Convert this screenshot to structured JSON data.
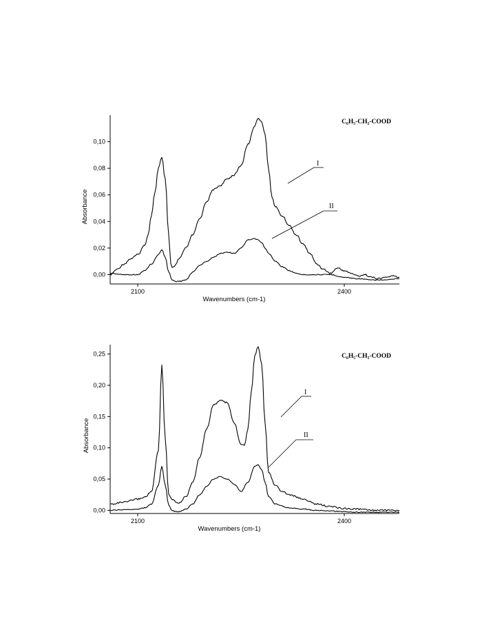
{
  "chart_data": [
    {
      "type": "line",
      "compound_label": "C₆H₅-CH₂-COOD",
      "xlabel": "Wavenumbers (cm-1)",
      "ylabel": "Absorbance",
      "xlim": [
        2060,
        2480
      ],
      "ylim": [
        -0.007,
        0.12
      ],
      "x_ticks": [
        2100,
        2400
      ],
      "y_ticks": [
        "0,00",
        "0,02",
        "0,04",
        "0,06",
        "0,08",
        "0,10"
      ],
      "y_tick_values": [
        0,
        0.02,
        0.04,
        0.06,
        0.08,
        0.1
      ],
      "grid": false,
      "series": [
        {
          "name": "I",
          "x": [
            2060,
            2070,
            2080,
            2090,
            2100,
            2110,
            2115,
            2120,
            2125,
            2130,
            2135,
            2140,
            2145,
            2148,
            2150,
            2155,
            2160,
            2170,
            2180,
            2190,
            2200,
            2210,
            2220,
            2230,
            2240,
            2250,
            2260,
            2270,
            2275,
            2280,
            2285,
            2290,
            2295,
            2300,
            2310,
            2320,
            2330,
            2340,
            2350,
            2360,
            2370,
            2380,
            2390,
            2400,
            2410,
            2420,
            2430,
            2440,
            2450,
            2460,
            2470,
            2480
          ],
          "y": [
            0.0,
            0.004,
            0.008,
            0.012,
            0.015,
            0.022,
            0.03,
            0.045,
            0.062,
            0.08,
            0.088,
            0.072,
            0.03,
            0.008,
            0.005,
            0.007,
            0.012,
            0.02,
            0.03,
            0.042,
            0.055,
            0.064,
            0.067,
            0.072,
            0.075,
            0.082,
            0.098,
            0.112,
            0.118,
            0.115,
            0.105,
            0.08,
            0.058,
            0.051,
            0.044,
            0.037,
            0.03,
            0.023,
            0.016,
            0.008,
            0.004,
            0.001,
            0.005,
            0.003,
            0.001,
            -0.001,
            0.0,
            -0.002,
            -0.003,
            -0.002,
            -0.001,
            -0.002
          ]
        },
        {
          "name": "II",
          "x": [
            2060,
            2080,
            2100,
            2110,
            2120,
            2130,
            2135,
            2140,
            2145,
            2150,
            2155,
            2160,
            2170,
            2180,
            2190,
            2200,
            2210,
            2220,
            2230,
            2240,
            2250,
            2260,
            2270,
            2275,
            2280,
            2285,
            2290,
            2300,
            2310,
            2320,
            2330,
            2340,
            2350,
            2360,
            2380,
            2400,
            2420,
            2440,
            2460,
            2480
          ],
          "y": [
            0.001,
            0.0,
            0.0,
            0.003,
            0.008,
            0.015,
            0.019,
            0.013,
            0.002,
            -0.004,
            -0.005,
            -0.005,
            -0.004,
            0.002,
            0.007,
            0.01,
            0.013,
            0.016,
            0.017,
            0.016,
            0.02,
            0.026,
            0.027,
            0.026,
            0.024,
            0.02,
            0.016,
            0.01,
            0.006,
            0.003,
            0.001,
            0.0,
            0.0,
            0.0,
            0.0,
            -0.002,
            -0.003,
            -0.004,
            -0.004,
            -0.003
          ]
        }
      ]
    },
    {
      "type": "line",
      "compound_label": "C₆H₅-CH₂-COOD",
      "xlabel": "Wavenumbers (cm-1)",
      "ylabel": "Absorbance",
      "xlim": [
        2060,
        2480
      ],
      "ylim": [
        -0.005,
        0.265
      ],
      "x_ticks": [
        2100,
        2400
      ],
      "y_ticks": [
        "0,00",
        "0,05",
        "0,10",
        "0,15",
        "0,20",
        "0,25"
      ],
      "y_tick_values": [
        0,
        0.05,
        0.1,
        0.15,
        0.2,
        0.25
      ],
      "grid": false,
      "series": [
        {
          "name": "I",
          "x": [
            2060,
            2080,
            2100,
            2110,
            2120,
            2130,
            2135,
            2140,
            2145,
            2150,
            2155,
            2160,
            2170,
            2180,
            2190,
            2200,
            2210,
            2220,
            2230,
            2240,
            2250,
            2255,
            2260,
            2265,
            2270,
            2275,
            2280,
            2285,
            2290,
            2300,
            2310,
            2320,
            2340,
            2360,
            2380,
            2400,
            2420,
            2440,
            2460,
            2480
          ],
          "y": [
            0.01,
            0.013,
            0.018,
            0.021,
            0.03,
            0.095,
            0.232,
            0.115,
            0.025,
            0.018,
            0.014,
            0.012,
            0.022,
            0.045,
            0.085,
            0.13,
            0.168,
            0.176,
            0.172,
            0.14,
            0.106,
            0.105,
            0.13,
            0.19,
            0.248,
            0.262,
            0.235,
            0.14,
            0.06,
            0.04,
            0.03,
            0.025,
            0.018,
            0.01,
            0.006,
            0.003,
            0.002,
            0.0,
            0.0,
            0.0
          ]
        },
        {
          "name": "II",
          "x": [
            2060,
            2080,
            2100,
            2110,
            2120,
            2130,
            2135,
            2140,
            2145,
            2150,
            2155,
            2160,
            2170,
            2180,
            2190,
            2200,
            2210,
            2220,
            2230,
            2240,
            2250,
            2260,
            2270,
            2275,
            2280,
            2285,
            2290,
            2300,
            2320,
            2340,
            2360,
            2380,
            2400,
            2420,
            2440,
            2460,
            2480
          ],
          "y": [
            0.0,
            0.001,
            0.002,
            0.004,
            0.01,
            0.04,
            0.07,
            0.04,
            0.008,
            0.0,
            -0.002,
            -0.002,
            0.002,
            0.01,
            0.025,
            0.038,
            0.05,
            0.054,
            0.05,
            0.042,
            0.03,
            0.045,
            0.07,
            0.073,
            0.065,
            0.045,
            0.022,
            0.01,
            0.004,
            0.002,
            0.0,
            -0.001,
            -0.002,
            -0.003,
            -0.003,
            -0.003,
            -0.003
          ]
        }
      ]
    }
  ]
}
